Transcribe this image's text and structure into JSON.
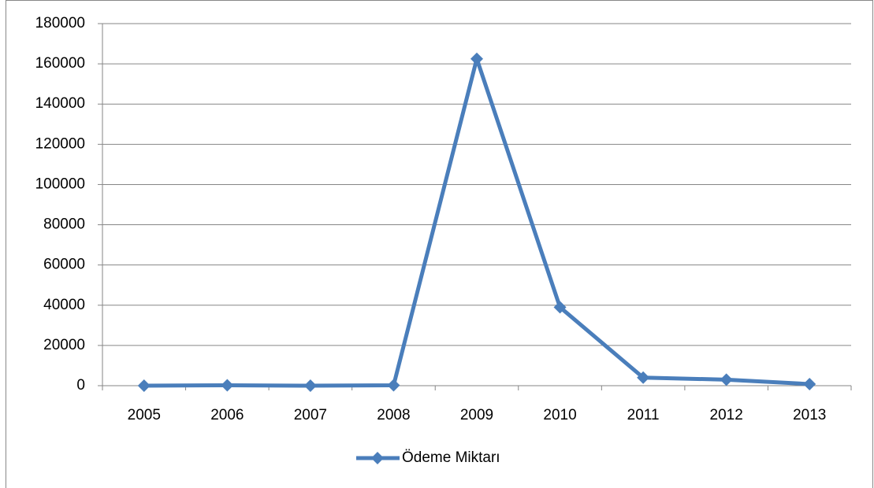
{
  "chart_data": {
    "type": "line",
    "categories": [
      "2005",
      "2006",
      "2007",
      "2008",
      "2009",
      "2010",
      "2011",
      "2012",
      "2013"
    ],
    "series": [
      {
        "name": "Ödeme Miktarı",
        "color": "#4a7ebb",
        "values": [
          0,
          200,
          0,
          200,
          162500,
          39000,
          4000,
          3000,
          800
        ]
      }
    ],
    "ylim": [
      0,
      180000
    ],
    "yticks": [
      0,
      20000,
      40000,
      60000,
      80000,
      100000,
      120000,
      140000,
      160000,
      180000
    ],
    "grid": true,
    "legend": "bottom"
  }
}
